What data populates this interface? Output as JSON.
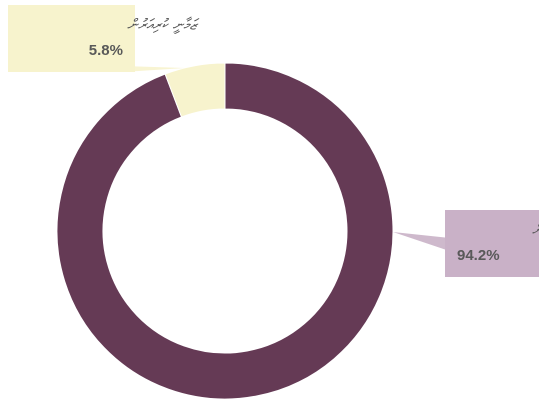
{
  "chart_data": {
    "type": "donut",
    "categories": [
      "އަހަރުގެ ކުރިއަށް",
      "ޒަމާނީ ކުރިއަރުން"
    ],
    "values": [
      94.2,
      5.8
    ],
    "value_labels": [
      "94.2%",
      "5.8%"
    ],
    "colors": [
      "#653a55",
      "#f7f3cd"
    ],
    "label_colors": [
      "#c9b1c7",
      "#f7f3cd"
    ]
  }
}
